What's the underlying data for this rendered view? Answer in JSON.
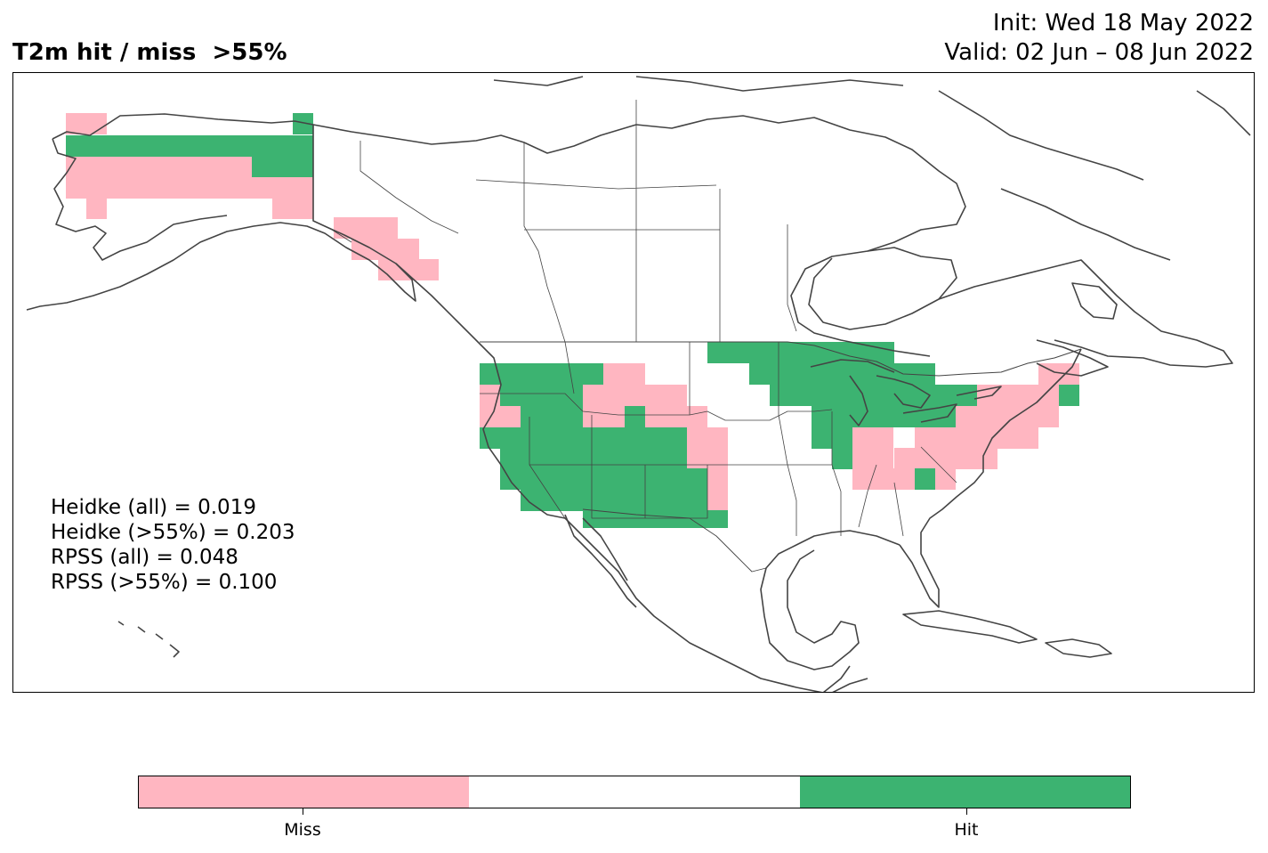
{
  "title": {
    "left": "T2m hit / miss  >55%",
    "init": "Init: Wed 18 May 2022",
    "valid": "Valid: 02 Jun – 08 Jun 2022"
  },
  "scores": [
    "Heidke (all) = 0.019",
    "Heidke (>55%) = 0.203",
    "RPSS (all) = 0.048",
    "RPSS (>55%) = 0.100"
  ],
  "colors": {
    "miss": "#ffb6c1",
    "neutral": "#ffffff",
    "hit": "#3cb371",
    "coast": "#444444"
  },
  "legend": {
    "miss_label": "Miss",
    "hit_label": "Hit"
  },
  "map": {
    "grid": [
      {
        "c": "miss",
        "rows": [
          [
            3,
            1,
            2
          ]
        ]
      },
      {
        "c": "hit",
        "rows": [
          [
            3,
            1,
            14
          ]
        ]
      },
      {
        "c": "hit",
        "rows": [
          [
            4,
            3,
            14
          ]
        ]
      },
      {
        "c": "miss",
        "rows": [
          [
            5,
            3,
            12
          ],
          [
            6,
            3,
            14
          ],
          [
            7,
            3,
            14
          ],
          [
            8,
            4,
            14
          ],
          [
            9,
            4,
            14
          ],
          [
            10,
            4,
            5
          ]
        ]
      },
      {
        "c": "hit",
        "rows": [
          [
            6,
            12,
            14
          ],
          [
            7,
            12,
            14
          ]
        ]
      },
      {
        "c": "miss",
        "rows": [
          [
            9,
            13,
            14
          ],
          [
            10,
            13,
            14
          ],
          [
            7,
            13,
            14
          ]
        ]
      }
    ]
  }
}
